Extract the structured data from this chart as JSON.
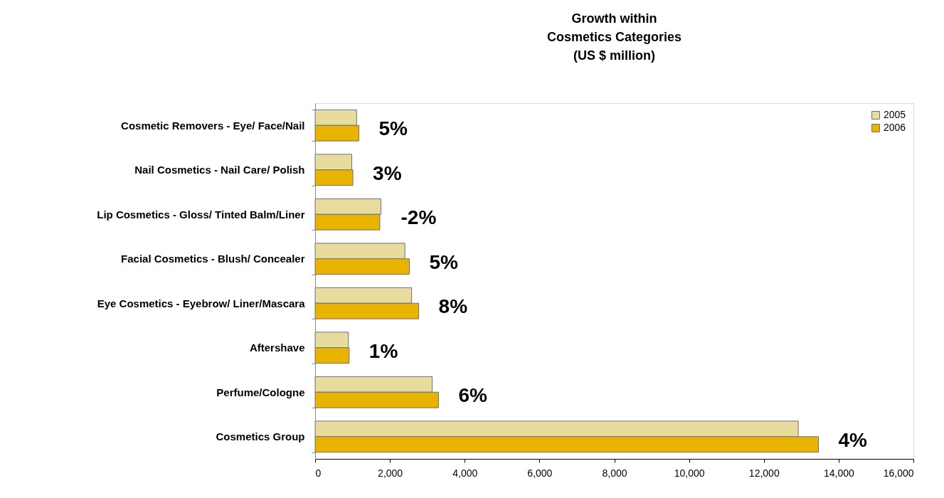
{
  "chart_data": {
    "type": "bar",
    "orientation": "horizontal",
    "title": [
      "Growth within",
      "Cosmetics Categories",
      "(US $ million)"
    ],
    "categories": [
      "Cosmetic Removers - Eye/ Face/Nail",
      "Nail Cosmetics - Nail Care/ Polish",
      "Lip Cosmetics - Gloss/ Tinted Balm/Liner",
      "Facial Cosmetics - Blush/ Concealer",
      "Eye Cosmetics - Eyebrow/ Liner/Mascara",
      "Aftershave",
      "Perfume/Cologne",
      "Cosmetics Group"
    ],
    "series": [
      {
        "name": "2005",
        "color": "#e8dc9c",
        "values": [
          1110,
          980,
          1760,
          2400,
          2580,
          890,
          3130,
          12920
        ]
      },
      {
        "name": "2006",
        "color": "#e8b400",
        "values": [
          1170,
          1010,
          1730,
          2520,
          2770,
          910,
          3300,
          13460
        ]
      }
    ],
    "xlim": [
      0,
      16000
    ],
    "xticks": [
      {
        "value": 0,
        "label": "0"
      },
      {
        "value": 2000,
        "label": "2,000"
      },
      {
        "value": 4000,
        "label": "4,000"
      },
      {
        "value": 6000,
        "label": "6,000"
      },
      {
        "value": 8000,
        "label": "8,000"
      },
      {
        "value": 10000,
        "label": "10,000"
      },
      {
        "value": 12000,
        "label": "12,000"
      },
      {
        "value": 14000,
        "label": "14,000"
      },
      {
        "value": 16000,
        "label": "16,000"
      }
    ],
    "annotations": [
      "5%",
      "3%",
      "-2%",
      "5%",
      "8%",
      "1%",
      "6%",
      "4%"
    ],
    "legend": "top right",
    "grid": false
  }
}
